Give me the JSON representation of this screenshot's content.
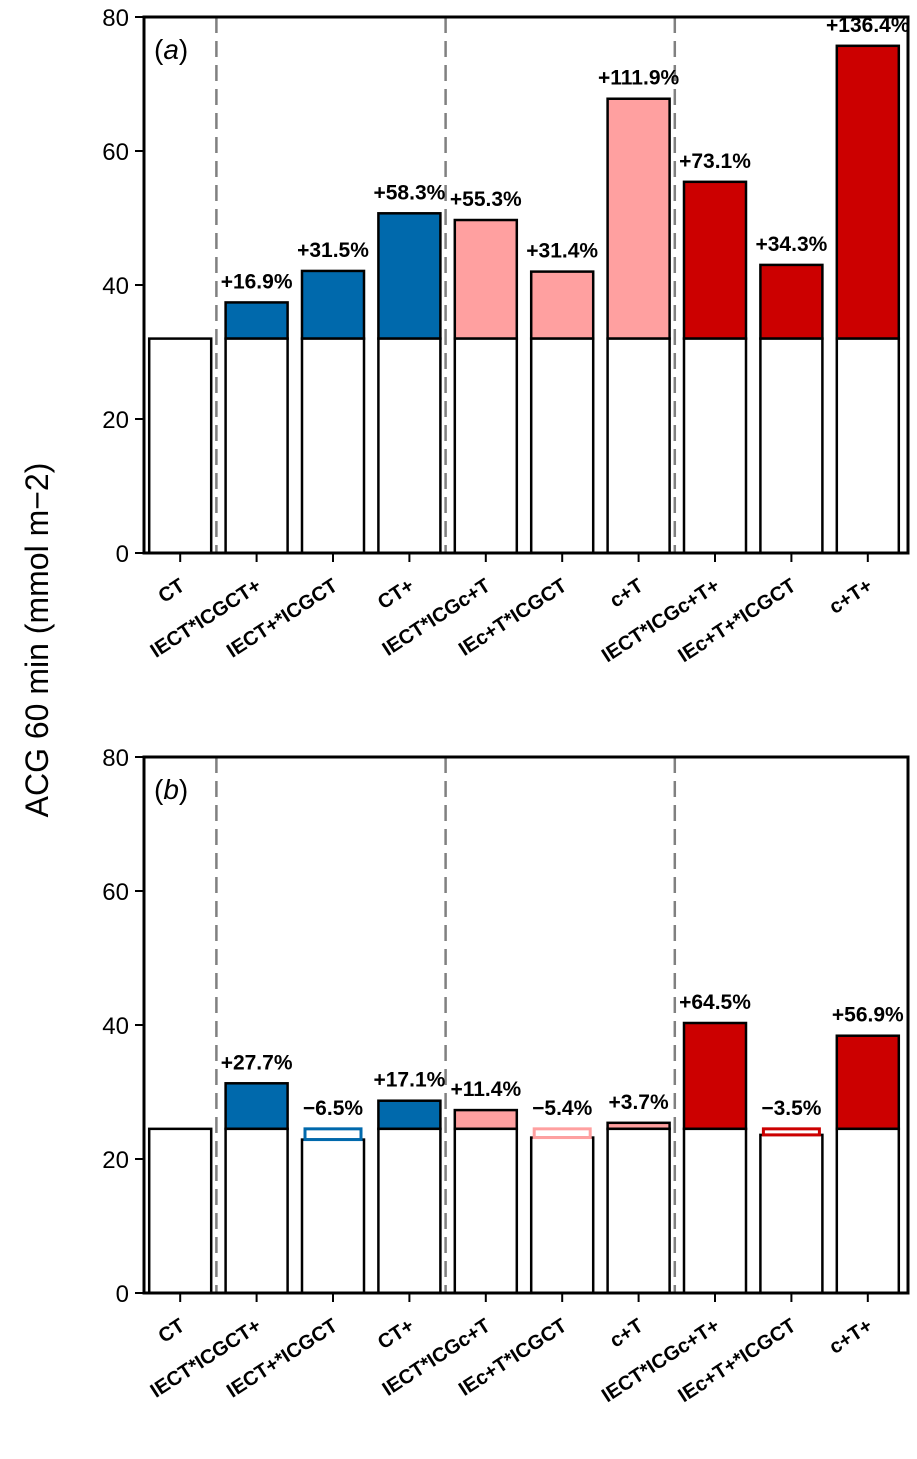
{
  "y_axis_label": "ACG 60 min (mmol m−2)",
  "colors": {
    "blue": "#0069ac",
    "pink": "#ffa0a0",
    "red": "#cc0000",
    "base": "#ffffff",
    "divider": "#808080"
  },
  "chart_data": [
    {
      "type": "bar",
      "panel_label_open": "(",
      "panel_letter": "a",
      "panel_label_close": ")",
      "ylim": [
        0,
        80
      ],
      "yticks": [
        "0",
        "20",
        "40",
        "60",
        "80"
      ],
      "categories": [
        "CT",
        "IECT*ICGCT+",
        "IECT+*ICGCT",
        "CT+",
        "IECT*ICGc+T",
        "IEc+T*ICGCT",
        "c+T",
        "IECT*ICGc+T+",
        "IEc+T+*ICGCT",
        "c+T+"
      ],
      "baseline": 32,
      "values": [
        32,
        37.4,
        42.1,
        50.7,
        49.7,
        42.0,
        67.8,
        55.4,
        43.0,
        75.7
      ],
      "pct_labels": [
        "",
        "+16.9%",
        "+31.5%",
        "+58.3%",
        "+55.3%",
        "+31.4%",
        "+111.9%",
        "+73.1%",
        "+34.3%",
        "+136.4%"
      ],
      "group_colors": [
        "base",
        "blue",
        "blue",
        "blue",
        "pink",
        "pink",
        "pink",
        "red",
        "red",
        "red"
      ]
    },
    {
      "type": "bar",
      "panel_label_open": "(",
      "panel_letter": "b",
      "panel_label_close": ")",
      "ylim": [
        0,
        80
      ],
      "yticks": [
        "0",
        "20",
        "40",
        "60",
        "80"
      ],
      "categories": [
        "CT",
        "IECT*ICGCT+",
        "IECT+*ICGCT",
        "CT+",
        "IECT*ICGc+T",
        "IEc+T*ICGCT",
        "c+T",
        "IECT*ICGc+T+",
        "IEc+T+*ICGCT",
        "c+T+"
      ],
      "baseline": 24.5,
      "values": [
        24.5,
        31.3,
        22.9,
        28.7,
        27.3,
        23.2,
        25.4,
        40.3,
        23.6,
        38.4
      ],
      "pct_labels": [
        "",
        "+27.7%",
        "−6.5%",
        "+17.1%",
        "+11.4%",
        "−5.4%",
        "+3.7%",
        "+64.5%",
        "−3.5%",
        "+56.9%"
      ],
      "group_colors": [
        "base",
        "blue",
        "blue",
        "blue",
        "pink",
        "pink",
        "pink",
        "red",
        "red",
        "red"
      ]
    }
  ]
}
